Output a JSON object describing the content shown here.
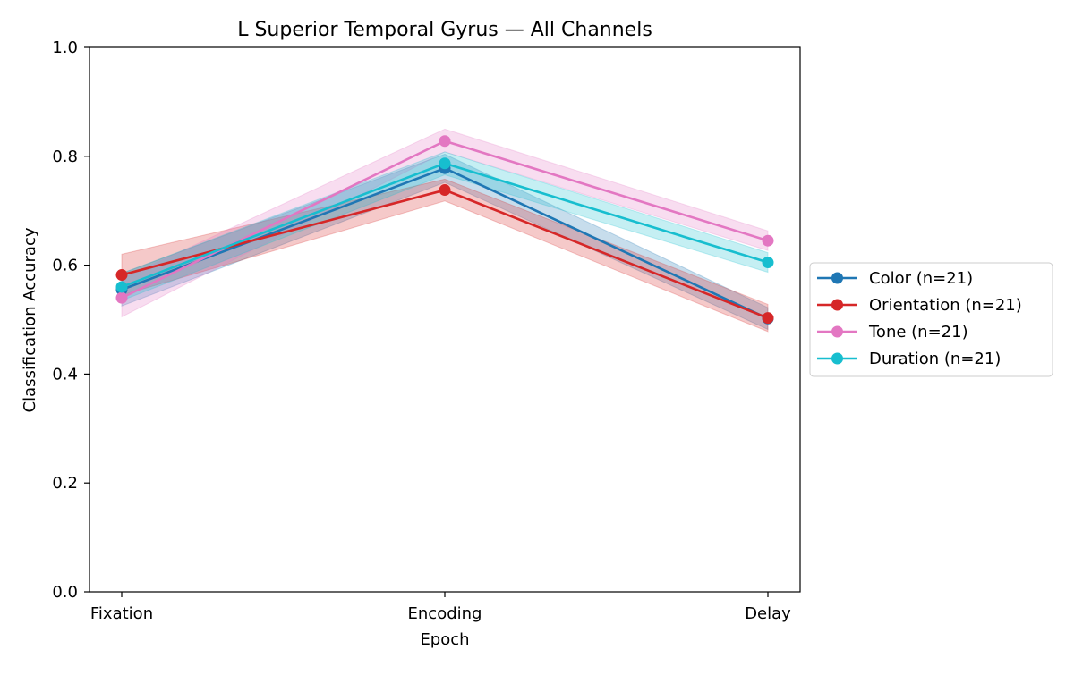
{
  "chart_data": {
    "type": "line",
    "title": "L Superior Temporal Gyrus — All Channels",
    "xlabel": "Epoch",
    "ylabel": "Classification Accuracy",
    "categories": [
      "Fixation",
      "Encoding",
      "Delay"
    ],
    "ylim": [
      0.0,
      1.0
    ],
    "yticks": [
      "0.0",
      "0.2",
      "0.4",
      "0.6",
      "0.8",
      "1.0"
    ],
    "grid": false,
    "legend_position": "outside right",
    "series": [
      {
        "name": "Color (n=21)",
        "color": "#1f77b4",
        "values": [
          0.555,
          0.778,
          0.502
        ],
        "lower": [
          0.525,
          0.752,
          0.482
        ],
        "upper": [
          0.585,
          0.804,
          0.522
        ]
      },
      {
        "name": "Orientation (n=21)",
        "color": "#d62728",
        "values": [
          0.582,
          0.738,
          0.503
        ],
        "lower": [
          0.545,
          0.718,
          0.478
        ],
        "upper": [
          0.62,
          0.758,
          0.528
        ]
      },
      {
        "name": "Tone (n=21)",
        "color": "#e377c2",
        "values": [
          0.54,
          0.828,
          0.645
        ],
        "lower": [
          0.505,
          0.808,
          0.627
        ],
        "upper": [
          0.575,
          0.85,
          0.663
        ]
      },
      {
        "name": "Duration (n=21)",
        "color": "#17becf",
        "values": [
          0.56,
          0.787,
          0.605
        ],
        "lower": [
          0.535,
          0.766,
          0.587
        ],
        "upper": [
          0.585,
          0.808,
          0.623
        ]
      }
    ]
  }
}
